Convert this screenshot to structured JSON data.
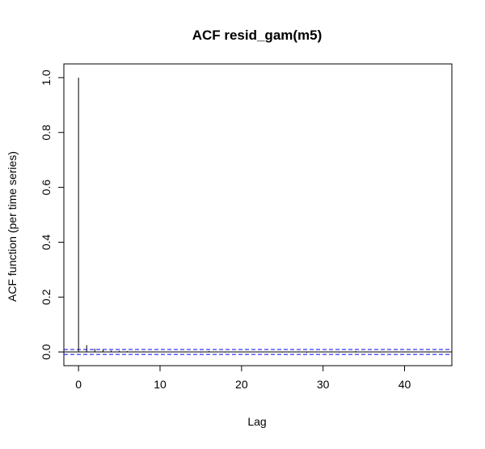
{
  "chart_data": {
    "type": "bar",
    "title": "ACF resid_gam(m5)",
    "xlabel": "Lag",
    "ylabel": "ACF function (per time series)",
    "xlim": [
      -1.8,
      45.8
    ],
    "ylim": [
      -0.05,
      1.05
    ],
    "x_ticks": [
      0,
      10,
      20,
      30,
      40
    ],
    "x_tick_labels": [
      "0",
      "10",
      "20",
      "30",
      "40"
    ],
    "y_ticks": [
      0.0,
      0.2,
      0.4,
      0.6,
      0.8,
      1.0
    ],
    "y_tick_labels": [
      "0.0",
      "0.2",
      "0.4",
      "0.6",
      "0.8",
      "1.0"
    ],
    "lags": [
      0,
      1,
      2,
      3,
      4,
      5,
      6,
      7,
      8,
      9,
      10,
      11,
      12,
      13,
      14,
      15,
      16,
      17,
      18,
      19,
      20,
      21,
      22,
      23,
      24,
      25,
      26,
      27,
      28,
      29,
      30,
      31,
      32,
      33,
      34,
      35,
      36,
      37,
      38,
      39,
      40,
      41,
      42,
      43
    ],
    "values": [
      1.0,
      0.025,
      0.012,
      0.008,
      0.005,
      0.004,
      0.003,
      0.002,
      0.002,
      0.001,
      0.001,
      0.001,
      0.0,
      0.0,
      -0.001,
      -0.002,
      0.003,
      -0.001,
      -0.002,
      -0.001,
      0.0,
      0.001,
      0.0,
      -0.001,
      0.001,
      -0.002,
      -0.001,
      0.002,
      -0.003,
      -0.001,
      0.001,
      0.002,
      -0.002,
      0.001,
      0.003,
      -0.001,
      0.0,
      -0.002,
      0.001,
      0.002,
      -0.001,
      0.0,
      0.001,
      -0.002
    ],
    "confidence_bounds": [
      -0.009,
      0.009
    ],
    "zero_line": 0,
    "colors": {
      "bars": "#000000",
      "confidence": "#0000ff",
      "frame": "#000000"
    },
    "grid": false,
    "legend": "none"
  }
}
